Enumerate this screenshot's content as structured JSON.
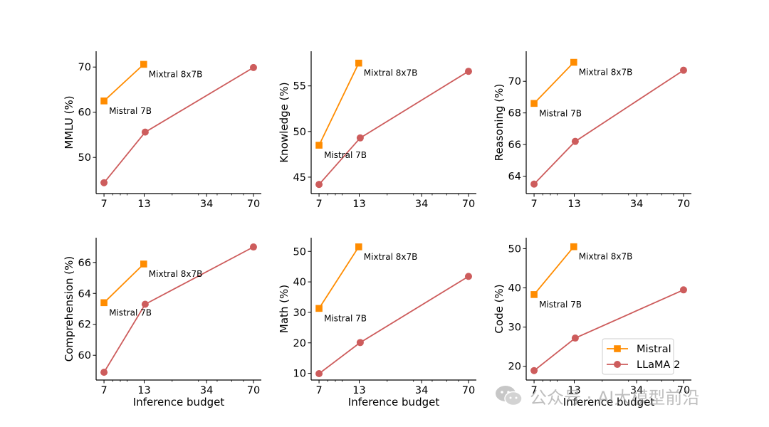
{
  "chart_data": [
    {
      "type": "line",
      "ylabel": "MMLU (%)",
      "xlabel": "",
      "x_scale": "log",
      "xlim": [
        6.2,
        79
      ],
      "ylim": [
        42,
        73.5
      ],
      "x_ticks": [
        7,
        13,
        34,
        70
      ],
      "y_ticks": [
        50,
        60,
        70
      ],
      "series": [
        {
          "name": "Mistral",
          "x": [
            7,
            12.9
          ],
          "y": [
            62.5,
            70.6
          ]
        },
        {
          "name": "LLaMA 2",
          "x": [
            7,
            13.2,
            70
          ],
          "y": [
            44.4,
            55.6,
            69.9
          ]
        }
      ],
      "annotations": [
        {
          "text": "Mistral 7B",
          "x": 7,
          "y": 62.5
        },
        {
          "text": "Mixtral 8x7B",
          "x": 12.9,
          "y": 70.6
        }
      ]
    },
    {
      "type": "line",
      "ylabel": "Knowledge (%)",
      "xlabel": "",
      "x_scale": "log",
      "xlim": [
        6.2,
        79
      ],
      "ylim": [
        43.2,
        58.8
      ],
      "x_ticks": [
        7,
        13,
        34,
        70
      ],
      "y_ticks": [
        45,
        50,
        55
      ],
      "series": [
        {
          "name": "Mistral",
          "x": [
            7,
            12.9
          ],
          "y": [
            48.5,
            57.5
          ]
        },
        {
          "name": "LLaMA 2",
          "x": [
            7,
            13.2,
            70
          ],
          "y": [
            44.2,
            49.3,
            56.6
          ]
        }
      ],
      "annotations": [
        {
          "text": "Mistral 7B",
          "x": 7,
          "y": 48.5
        },
        {
          "text": "Mixtral 8x7B",
          "x": 12.9,
          "y": 57.5
        }
      ]
    },
    {
      "type": "line",
      "ylabel": "Reasoning (%)",
      "xlabel": "",
      "x_scale": "log",
      "xlim": [
        6.2,
        79
      ],
      "ylim": [
        62.9,
        71.9
      ],
      "x_ticks": [
        7,
        13,
        34,
        70
      ],
      "y_ticks": [
        64,
        66,
        68,
        70
      ],
      "series": [
        {
          "name": "Mistral",
          "x": [
            7,
            12.9
          ],
          "y": [
            68.6,
            71.2
          ]
        },
        {
          "name": "LLaMA 2",
          "x": [
            7,
            13.2,
            70
          ],
          "y": [
            63.5,
            66.2,
            70.7
          ]
        }
      ],
      "annotations": [
        {
          "text": "Mistral 7B",
          "x": 7,
          "y": 68.6
        },
        {
          "text": "Mixtral 8x7B",
          "x": 12.9,
          "y": 71.2
        }
      ]
    },
    {
      "type": "line",
      "ylabel": "Comprehension (%)",
      "xlabel": "Inference budget",
      "x_scale": "log",
      "xlim": [
        6.2,
        79
      ],
      "ylim": [
        58.4,
        67.6
      ],
      "x_ticks": [
        7,
        13,
        34,
        70
      ],
      "y_ticks": [
        60,
        62,
        64,
        66
      ],
      "series": [
        {
          "name": "Mistral",
          "x": [
            7,
            12.9
          ],
          "y": [
            63.4,
            65.9
          ]
        },
        {
          "name": "LLaMA 2",
          "x": [
            7,
            13.2,
            70
          ],
          "y": [
            58.9,
            63.3,
            67.0
          ]
        }
      ],
      "annotations": [
        {
          "text": "Mistral 7B",
          "x": 7,
          "y": 63.4
        },
        {
          "text": "Mixtral 8x7B",
          "x": 12.9,
          "y": 65.9
        }
      ]
    },
    {
      "type": "line",
      "ylabel": "Math (%)",
      "xlabel": "Inference budget",
      "x_scale": "log",
      "xlim": [
        6.2,
        79
      ],
      "ylim": [
        7.8,
        54.5
      ],
      "x_ticks": [
        7,
        13,
        34,
        70
      ],
      "y_ticks": [
        10,
        20,
        30,
        40,
        50
      ],
      "series": [
        {
          "name": "Mistral",
          "x": [
            7,
            12.9
          ],
          "y": [
            31.3,
            51.5
          ]
        },
        {
          "name": "LLaMA 2",
          "x": [
            7,
            13.2,
            70
          ],
          "y": [
            9.9,
            20.1,
            41.8
          ]
        }
      ],
      "annotations": [
        {
          "text": "Mistral 7B",
          "x": 7,
          "y": 31.3
        },
        {
          "text": "Mixtral 8x7B",
          "x": 12.9,
          "y": 51.5
        }
      ]
    },
    {
      "type": "line",
      "ylabel": "Code (%)",
      "xlabel": "Inference budget",
      "x_scale": "log",
      "xlim": [
        6.2,
        79
      ],
      "ylim": [
        16.5,
        52.8
      ],
      "x_ticks": [
        7,
        13,
        34,
        70
      ],
      "y_ticks": [
        20,
        30,
        40,
        50
      ],
      "series": [
        {
          "name": "Mistral",
          "x": [
            7,
            12.9
          ],
          "y": [
            38.3,
            50.5
          ]
        },
        {
          "name": "LLaMA 2",
          "x": [
            7,
            13.2,
            70
          ],
          "y": [
            18.9,
            27.2,
            39.5
          ]
        }
      ],
      "annotations": [
        {
          "text": "Mistral 7B",
          "x": 7,
          "y": 38.3
        },
        {
          "text": "Mixtral 8x7B",
          "x": 12.9,
          "y": 50.5
        }
      ],
      "legend": {
        "position": "lower-right",
        "entries": [
          "Mistral",
          "LLaMA 2"
        ]
      }
    }
  ],
  "colors": {
    "mistral": "#ff8c00",
    "llama": "#cd5c5c",
    "axis": "#000000"
  },
  "watermark": {
    "text": "公众号 · AI大模型前沿",
    "icon": "wechat-icon"
  }
}
